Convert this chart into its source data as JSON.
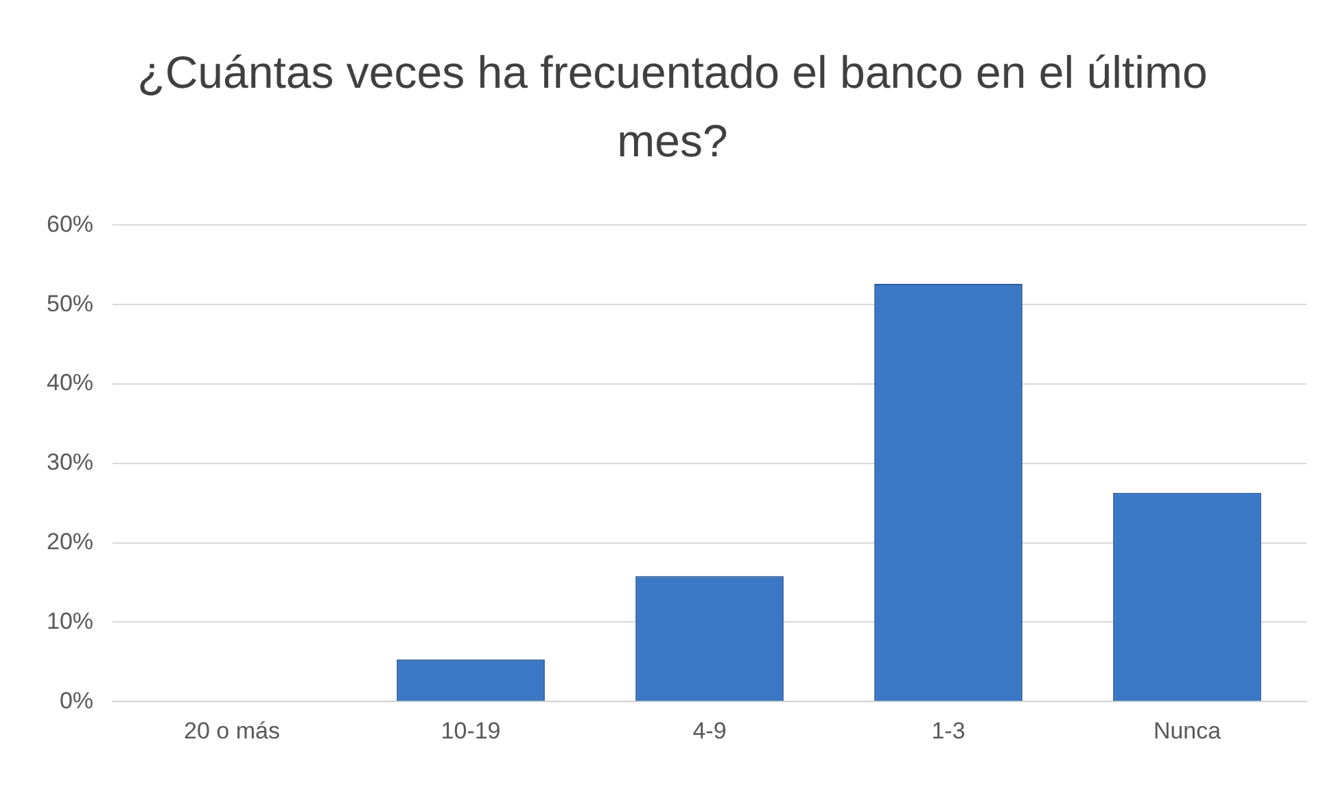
{
  "chart_data": {
    "type": "bar",
    "title": "¿Cuántas veces ha frecuentado el banco en el último mes?",
    "categories": [
      "20 o más",
      "10-19",
      "4-9",
      "1-3",
      "Nunca"
    ],
    "values": [
      0,
      5.3,
      15.8,
      52.6,
      26.3
    ],
    "color": "#3a78c6",
    "ylim": [
      0,
      60
    ],
    "yticks": [
      {
        "value": 0,
        "label": "0%"
      },
      {
        "value": 10,
        "label": "10%"
      },
      {
        "value": 20,
        "label": "20%"
      },
      {
        "value": 30,
        "label": "30%"
      },
      {
        "value": 40,
        "label": "40%"
      },
      {
        "value": 50,
        "label": "50%"
      },
      {
        "value": 60,
        "label": "60%"
      }
    ],
    "grid": "y",
    "legend": false
  }
}
